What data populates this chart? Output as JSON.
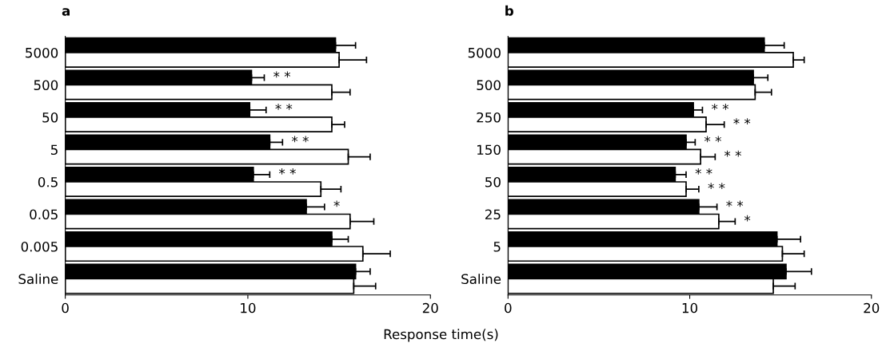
{
  "chart_data": [
    {
      "type": "bar",
      "title": "a",
      "orientation": "horizontal",
      "xlabel": "Response time(s)",
      "categories": [
        "5000",
        "500",
        "50",
        "5",
        "0.5",
        "0.05",
        "0.005",
        "Saline"
      ],
      "series": [
        {
          "color": "#000000",
          "values": [
            14.8,
            10.2,
            10.1,
            11.2,
            10.3,
            13.2,
            14.6,
            15.9
          ],
          "errors": [
            [
              14.8,
              15.9
            ],
            [
              10.2,
              10.9
            ],
            [
              10.1,
              11.0
            ],
            [
              11.2,
              11.9
            ],
            [
              10.3,
              11.2
            ],
            [
              13.2,
              14.2
            ],
            [
              14.6,
              15.5
            ],
            [
              15.9,
              16.7
            ]
          ]
        },
        {
          "color": "#ffffff",
          "values": [
            15.0,
            14.6,
            14.6,
            15.5,
            14.0,
            15.6,
            16.3,
            15.8
          ],
          "errors": [
            [
              15.0,
              16.5
            ],
            [
              14.6,
              15.6
            ],
            [
              14.6,
              15.3
            ],
            [
              15.5,
              16.7
            ],
            [
              14.0,
              15.1
            ],
            [
              15.6,
              16.9
            ],
            [
              16.3,
              17.8
            ],
            [
              15.8,
              17.0
            ]
          ]
        }
      ],
      "xlim": [
        0,
        20
      ],
      "xticks": [
        0,
        10,
        20
      ],
      "grid": false,
      "legend": false,
      "annotations": [
        {
          "text": "* *",
          "x": 10.2,
          "y": "500"
        },
        {
          "text": "* *",
          "x": 10.1,
          "y": "50"
        },
        {
          "text": "* *",
          "x": 11.2,
          "y": "5"
        },
        {
          "text": "* *",
          "x": 10.3,
          "y": "0.5"
        },
        {
          "text": "*",
          "x": 13.2,
          "y": "0.05"
        }
      ]
    },
    {
      "type": "bar",
      "title": "b",
      "orientation": "horizontal",
      "categories": [
        "5000",
        "500",
        "250",
        "150",
        "50",
        "25",
        "5",
        "Saline"
      ],
      "series": [
        {
          "color": "#000000",
          "values": [
            14.1,
            13.5,
            10.2,
            9.8,
            9.2,
            10.5,
            14.8,
            15.3
          ],
          "errors": [
            [
              14.1,
              15.2
            ],
            [
              13.5,
              14.3
            ],
            [
              10.2,
              10.7
            ],
            [
              9.8,
              10.3
            ],
            [
              9.2,
              9.8
            ],
            [
              10.5,
              11.5
            ],
            [
              14.8,
              16.1
            ],
            [
              15.3,
              16.7
            ]
          ]
        },
        {
          "color": "#ffffff",
          "values": [
            15.7,
            13.6,
            10.9,
            10.6,
            9.8,
            11.6,
            15.1,
            14.6
          ],
          "errors": [
            [
              15.7,
              16.3
            ],
            [
              13.6,
              14.5
            ],
            [
              10.9,
              11.9
            ],
            [
              10.6,
              11.4
            ],
            [
              9.8,
              10.5
            ],
            [
              11.6,
              12.5
            ],
            [
              15.1,
              16.3
            ],
            [
              14.6,
              15.8
            ]
          ]
        }
      ],
      "xlim": [
        0,
        20
      ],
      "xticks": [
        0,
        10,
        20
      ],
      "grid": false,
      "legend": false,
      "annotations": [
        {
          "text": "* *",
          "x": 10.2,
          "y": "250"
        },
        {
          "text": "* *",
          "x": 10.9,
          "y": "250"
        },
        {
          "text": "* *",
          "x": 9.8,
          "y": "150"
        },
        {
          "text": "* *",
          "x": 10.6,
          "y": "150"
        },
        {
          "text": "* *",
          "x": 9.2,
          "y": "50"
        },
        {
          "text": "* *",
          "x": 9.8,
          "y": "50"
        },
        {
          "text": "* *",
          "x": 10.5,
          "y": "25"
        },
        {
          "text": "*",
          "x": 11.6,
          "y": "25"
        }
      ]
    }
  ]
}
